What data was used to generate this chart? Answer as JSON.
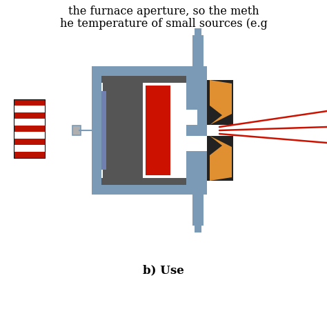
{
  "background_color": "#ffffff",
  "text_top1": "the furnace aperture, so the meth",
  "text_top2": "he temperature of small sources (e.g",
  "label": "b) Use",
  "colors": {
    "gray_blue": "#7a9ab5",
    "gray_blue_dark": "#5a7a95",
    "dark_gray": "#555555",
    "red_elem": "#cc1100",
    "orange": "#e09030",
    "white": "#ffffff",
    "black": "#111111",
    "light_gray": "#b0b0b0",
    "stripe_red": "#bb1100",
    "mid_gray": "#888888",
    "blue_purple": "#7080b0",
    "near_black": "#222222"
  },
  "figsize": [
    4.74,
    4.74
  ],
  "dpi": 100
}
